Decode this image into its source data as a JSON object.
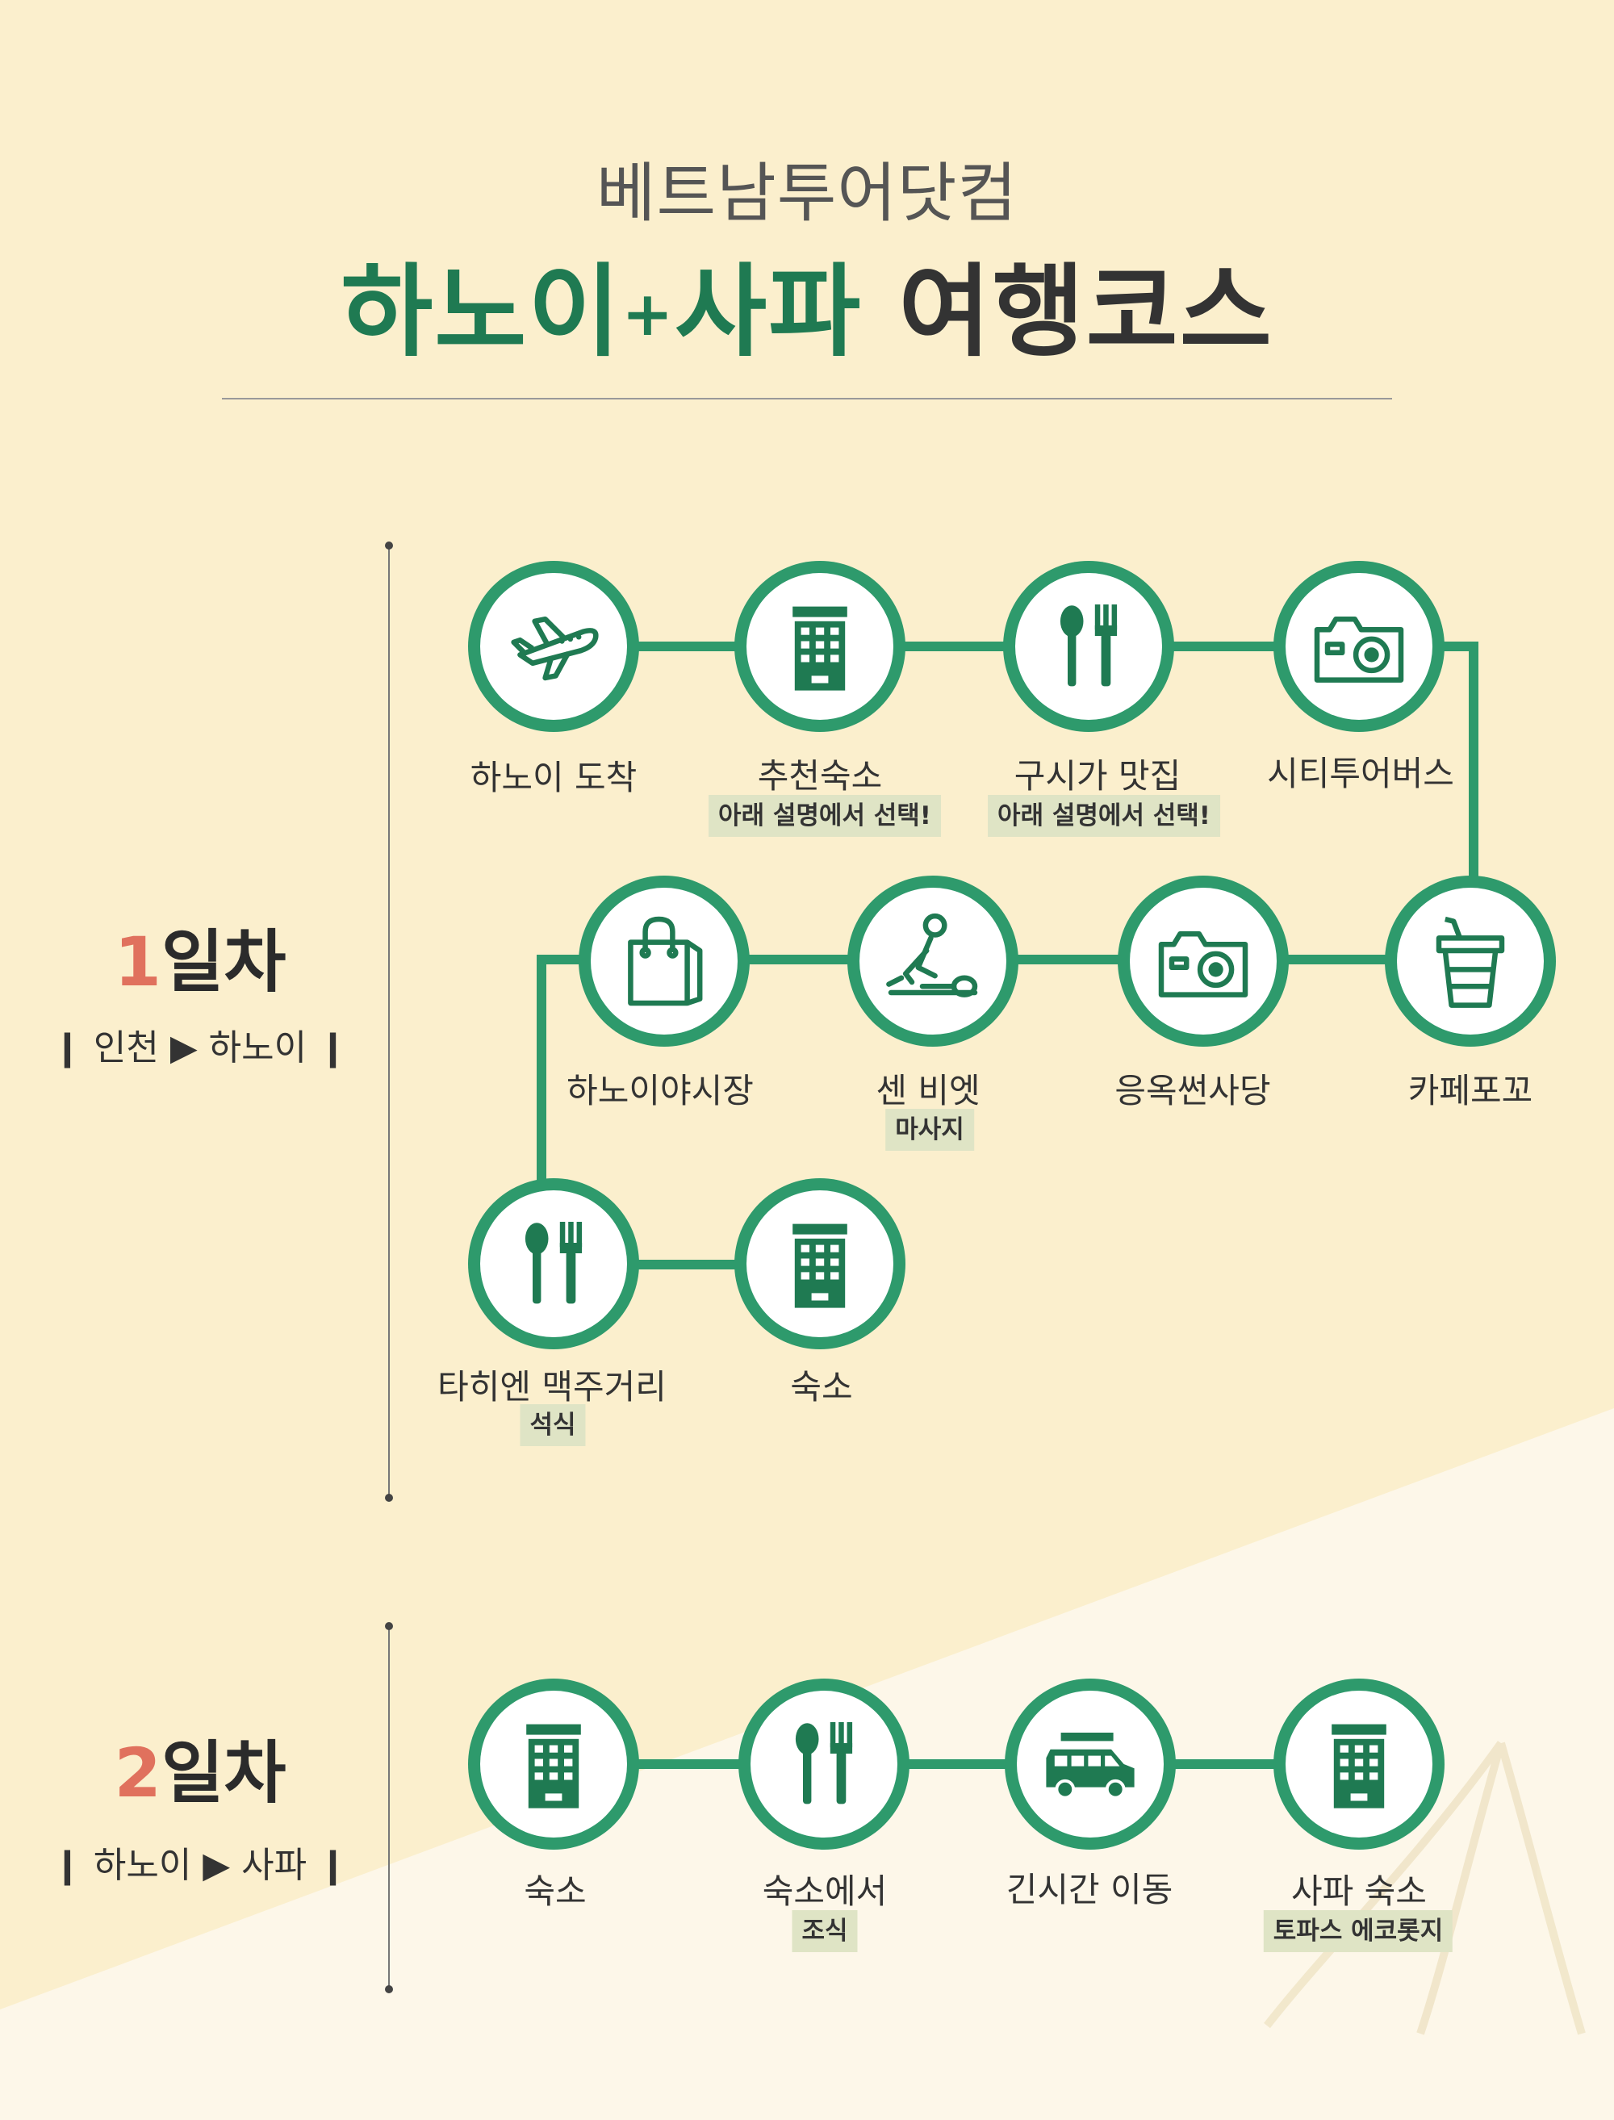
{
  "header": {
    "brand": "베트남투어닷컴",
    "title_green": "하노이",
    "title_plus": "+",
    "title_green2": "사파",
    "title_dark": "여행코스"
  },
  "days": [
    {
      "num": "1",
      "label": "일차",
      "route": "❙ 인천 ▶ 하노이 ❙",
      "stops": [
        {
          "label": "하노이 도착",
          "icon": "airplane-icon"
        },
        {
          "label": "추천숙소",
          "icon": "hotel-icon",
          "note": "아래 설명에서 선택!"
        },
        {
          "label": "구시가 맛집",
          "icon": "restaurant-icon",
          "note": "아래 설명에서 선택!"
        },
        {
          "label": "시티투어버스",
          "icon": "camera-icon"
        },
        {
          "label": "카페포꼬",
          "icon": "drink-cup-icon"
        },
        {
          "label": "응옥썬사당",
          "icon": "camera-icon"
        },
        {
          "label": "센 비엣",
          "icon": "massage-icon",
          "note": "마사지"
        },
        {
          "label": "하노이야시장",
          "icon": "shopping-bag-icon"
        },
        {
          "label": "타히엔 맥주거리",
          "icon": "restaurant-icon",
          "note": "석식"
        },
        {
          "label": "숙소",
          "icon": "hotel-icon"
        }
      ]
    },
    {
      "num": "2",
      "label": "일차",
      "route": "❙ 하노이 ▶ 사파 ❙",
      "stops": [
        {
          "label": "숙소",
          "icon": "hotel-icon"
        },
        {
          "label": "숙소에서",
          "icon": "restaurant-icon",
          "note": "조식"
        },
        {
          "label": "긴시간 이동",
          "icon": "van-icon"
        },
        {
          "label": "사파 숙소",
          "icon": "hotel-icon",
          "note": "토파스 에코롯지"
        }
      ]
    }
  ],
  "colors": {
    "background": "#fbefcd",
    "accent_green": "#2e9a6c",
    "icon_green": "#1f7a52",
    "day_number": "#e0715d",
    "note_bg": "#dfe4c5"
  }
}
